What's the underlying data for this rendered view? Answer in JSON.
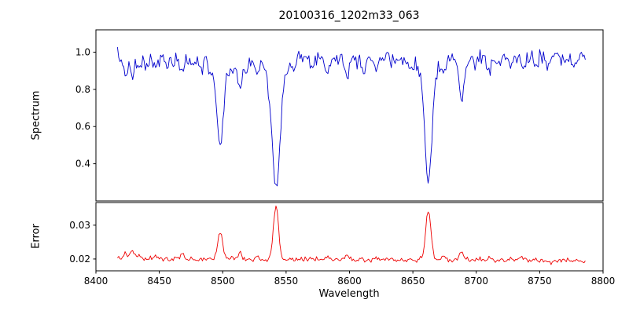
{
  "chart_data": {
    "type": "line",
    "title": "20100316_1202m33_063",
    "xlabel": "Wavelength",
    "xlim": [
      8400,
      8800
    ],
    "x_ticks": [
      8400,
      8450,
      8500,
      8550,
      8600,
      8650,
      8700,
      8750,
      8800
    ],
    "x_start": 8417,
    "x_end": 8786,
    "x_step": 1,
    "noise_seed": 7,
    "legend": "none",
    "grid": false,
    "panels": [
      {
        "name": "spectrum",
        "ylabel": "Spectrum",
        "color": "#0000cc",
        "ylim": [
          0.2,
          1.12
        ],
        "y_ticks": [
          0.4,
          0.6,
          0.8,
          1.0
        ],
        "y_tick_labels": [
          "0.4",
          "0.6",
          "0.8",
          "1.0"
        ],
        "continuum": 0.972,
        "noise_sigma": 0.02,
        "absorption_lines": [
          {
            "center": 8423,
            "depth": 0.085,
            "sigma": 1.6
          },
          {
            "center": 8428.5,
            "depth": 0.115,
            "sigma": 1.7
          },
          {
            "center": 8434,
            "depth": 0.07,
            "sigma": 1.5
          },
          {
            "center": 8440,
            "depth": 0.055,
            "sigma": 1.5
          },
          {
            "center": 8447,
            "depth": 0.07,
            "sigma": 1.5
          },
          {
            "center": 8456,
            "depth": 0.05,
            "sigma": 1.4
          },
          {
            "center": 8462,
            "depth": 0.045,
            "sigma": 1.4
          },
          {
            "center": 8468,
            "depth": 0.095,
            "sigma": 1.8
          },
          {
            "center": 8476,
            "depth": 0.05,
            "sigma": 1.4
          },
          {
            "center": 8484,
            "depth": 0.06,
            "sigma": 1.4
          },
          {
            "center": 8490,
            "depth": 0.045,
            "sigma": 1.3
          },
          {
            "center": 8498.02,
            "depth": 0.42,
            "sigma": 2.6
          },
          {
            "center": 8498.02,
            "depth": 0.055,
            "sigma": 7.0
          },
          {
            "center": 8507,
            "depth": 0.065,
            "sigma": 1.5
          },
          {
            "center": 8513.5,
            "depth": 0.16,
            "sigma": 1.9
          },
          {
            "center": 8519,
            "depth": 0.08,
            "sigma": 1.5
          },
          {
            "center": 8527,
            "depth": 0.065,
            "sigma": 1.5
          },
          {
            "center": 8536,
            "depth": 0.05,
            "sigma": 1.4
          },
          {
            "center": 8542.09,
            "depth": 0.66,
            "sigma": 3.0
          },
          {
            "center": 8542.09,
            "depth": 0.06,
            "sigma": 9.0
          },
          {
            "center": 8556,
            "depth": 0.05,
            "sigma": 1.4
          },
          {
            "center": 8569,
            "depth": 0.05,
            "sigma": 1.4
          },
          {
            "center": 8582,
            "depth": 0.075,
            "sigma": 1.6
          },
          {
            "center": 8598,
            "depth": 0.095,
            "sigma": 1.8
          },
          {
            "center": 8611,
            "depth": 0.06,
            "sigma": 1.5
          },
          {
            "center": 8621,
            "depth": 0.065,
            "sigma": 1.5
          },
          {
            "center": 8634,
            "depth": 0.05,
            "sigma": 1.4
          },
          {
            "center": 8648,
            "depth": 0.06,
            "sigma": 1.5
          },
          {
            "center": 8662.14,
            "depth": 0.62,
            "sigma": 2.8
          },
          {
            "center": 8662.14,
            "depth": 0.05,
            "sigma": 8.0
          },
          {
            "center": 8674.5,
            "depth": 0.075,
            "sigma": 1.6
          },
          {
            "center": 8688.5,
            "depth": 0.23,
            "sigma": 2.1
          },
          {
            "center": 8699,
            "depth": 0.05,
            "sigma": 1.4
          },
          {
            "center": 8710,
            "depth": 0.07,
            "sigma": 1.5
          },
          {
            "center": 8718,
            "depth": 0.05,
            "sigma": 1.4
          },
          {
            "center": 8727,
            "depth": 0.045,
            "sigma": 1.4
          },
          {
            "center": 8736,
            "depth": 0.06,
            "sigma": 1.5
          },
          {
            "center": 8747,
            "depth": 0.05,
            "sigma": 1.4
          },
          {
            "center": 8757,
            "depth": 0.055,
            "sigma": 1.4
          },
          {
            "center": 8768,
            "depth": 0.05,
            "sigma": 1.4
          },
          {
            "center": 8777,
            "depth": 0.05,
            "sigma": 1.4
          }
        ]
      },
      {
        "name": "error",
        "ylabel": "Error",
        "color": "#ee0000",
        "ylim": [
          0.0165,
          0.0367
        ],
        "y_ticks": [
          0.02,
          0.03
        ],
        "y_tick_labels": [
          "0.02",
          "0.03"
        ],
        "baseline": 0.0198,
        "baseline_slope": -1.2e-06,
        "slope_pivot": 8600,
        "noise_sigma": 0.00035,
        "peaks": [
          {
            "center": 8423,
            "height": 0.0016,
            "sigma": 1.5
          },
          {
            "center": 8428.5,
            "height": 0.0026,
            "sigma": 1.6
          },
          {
            "center": 8434,
            "height": 0.0014,
            "sigma": 1.4
          },
          {
            "center": 8447,
            "height": 0.0011,
            "sigma": 1.4
          },
          {
            "center": 8468,
            "height": 0.0013,
            "sigma": 1.5
          },
          {
            "center": 8498.02,
            "height": 0.008,
            "sigma": 2.0
          },
          {
            "center": 8507,
            "height": 0.001,
            "sigma": 1.4
          },
          {
            "center": 8513.5,
            "height": 0.0019,
            "sigma": 1.6
          },
          {
            "center": 8527,
            "height": 0.0009,
            "sigma": 1.4
          },
          {
            "center": 8542.09,
            "height": 0.0158,
            "sigma": 2.0
          },
          {
            "center": 8582,
            "height": 0.0009,
            "sigma": 1.4
          },
          {
            "center": 8598,
            "height": 0.0013,
            "sigma": 1.5
          },
          {
            "center": 8621,
            "height": 0.0008,
            "sigma": 1.3
          },
          {
            "center": 8662.14,
            "height": 0.015,
            "sigma": 2.0
          },
          {
            "center": 8674.5,
            "height": 0.0011,
            "sigma": 1.4
          },
          {
            "center": 8688.5,
            "height": 0.0025,
            "sigma": 1.6
          },
          {
            "center": 8710,
            "height": 0.0009,
            "sigma": 1.3
          },
          {
            "center": 8736,
            "height": 0.0008,
            "sigma": 1.3
          }
        ]
      }
    ]
  }
}
